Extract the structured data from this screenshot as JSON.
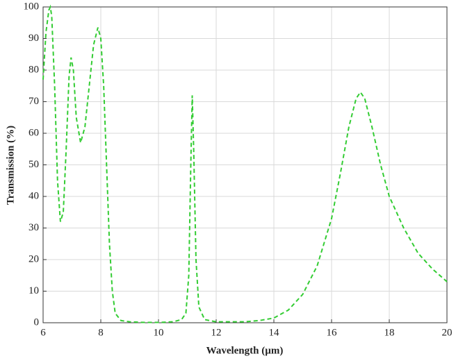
{
  "chart_data": {
    "type": "line",
    "x_label": "Wavelength (µm)",
    "y_label": "Transmission (%)",
    "x": [
      6.0,
      6.1,
      6.2,
      6.25,
      6.3,
      6.4,
      6.5,
      6.6,
      6.7,
      6.8,
      6.9,
      6.97,
      7.05,
      7.15,
      7.3,
      7.45,
      7.6,
      7.75,
      7.9,
      8.0,
      8.1,
      8.2,
      8.3,
      8.4,
      8.5,
      8.7,
      9.0,
      9.5,
      10.0,
      10.5,
      10.8,
      10.95,
      11.05,
      11.12,
      11.17,
      11.22,
      11.3,
      11.4,
      11.6,
      12.0,
      13.0,
      13.5,
      14.0,
      14.5,
      15.0,
      15.5,
      16.0,
      16.3,
      16.6,
      16.85,
      17.0,
      17.15,
      17.4,
      17.7,
      18.0,
      18.5,
      19.0,
      19.5,
      20.0
    ],
    "values": [
      77,
      92,
      99,
      100,
      97,
      75,
      45,
      32,
      35,
      55,
      78,
      84,
      80,
      65,
      57,
      62,
      75,
      88,
      93.5,
      90,
      75,
      50,
      25,
      10,
      3,
      0.7,
      0.3,
      0.1,
      0.1,
      0.3,
      1,
      3,
      15,
      50,
      72,
      55,
      20,
      5,
      1,
      0.3,
      0.3,
      0.7,
      1.5,
      4,
      9,
      18,
      33,
      47,
      62,
      71,
      73,
      71,
      62,
      50,
      40,
      30,
      22,
      17,
      13
    ],
    "color": "#33cc33",
    "xlim": [
      6,
      20
    ],
    "xticks": [
      6,
      8,
      10,
      12,
      14,
      16,
      18,
      20
    ],
    "ylim": [
      0,
      100
    ],
    "yticks": [
      0,
      10,
      20,
      30,
      40,
      50,
      60,
      70,
      80,
      90,
      100
    ],
    "grid": true
  }
}
